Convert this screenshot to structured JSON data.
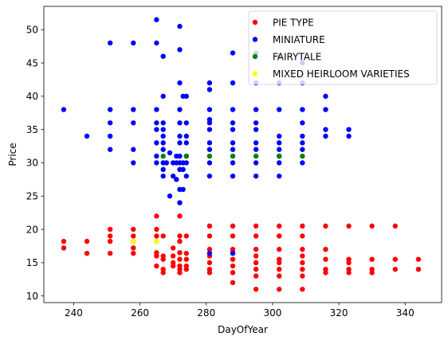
{
  "chart_data": {
    "type": "scatter",
    "xlabel": "DayOfYear",
    "ylabel": "Price",
    "xlim": [
      231,
      351
    ],
    "ylim": [
      9,
      53.5
    ],
    "xticks": [
      240,
      260,
      280,
      300,
      320,
      340
    ],
    "yticks": [
      10,
      15,
      20,
      25,
      30,
      35,
      40,
      45,
      50
    ],
    "grid": false,
    "legend_position": "top-right",
    "series": [
      {
        "name": "PIE TYPE",
        "color": "#ff0000",
        "points": [
          [
            237,
            18.2
          ],
          [
            237,
            17.2
          ],
          [
            244,
            18.2
          ],
          [
            244,
            16.4
          ],
          [
            251,
            20
          ],
          [
            251,
            19
          ],
          [
            251,
            18.2
          ],
          [
            251,
            16.4
          ],
          [
            258,
            20
          ],
          [
            258,
            19
          ],
          [
            258,
            18.2
          ],
          [
            258,
            17.2
          ],
          [
            258,
            16.4
          ],
          [
            265,
            22
          ],
          [
            265,
            20
          ],
          [
            265,
            19
          ],
          [
            265,
            18.2
          ],
          [
            265,
            16.5
          ],
          [
            265,
            16
          ],
          [
            265,
            14.5
          ],
          [
            267,
            19
          ],
          [
            267,
            16
          ],
          [
            267,
            15.5
          ],
          [
            267,
            14
          ],
          [
            267,
            13.5
          ],
          [
            270,
            17.2
          ],
          [
            270,
            16
          ],
          [
            270,
            15
          ],
          [
            270,
            14.5
          ],
          [
            272,
            24
          ],
          [
            272,
            22
          ],
          [
            272,
            19
          ],
          [
            272,
            18.2
          ],
          [
            272,
            16.5
          ],
          [
            272,
            15.5
          ],
          [
            272,
            14.5
          ],
          [
            272,
            14
          ],
          [
            272,
            13.5
          ],
          [
            274,
            19
          ],
          [
            274,
            16.4
          ],
          [
            274,
            15.5
          ],
          [
            274,
            14.5
          ],
          [
            274,
            14
          ],
          [
            281,
            20.5
          ],
          [
            281,
            19
          ],
          [
            281,
            17
          ],
          [
            281,
            16
          ],
          [
            281,
            15
          ],
          [
            281,
            14
          ],
          [
            281,
            13.5
          ],
          [
            288,
            20.5
          ],
          [
            288,
            19
          ],
          [
            288,
            17
          ],
          [
            288,
            16.5
          ],
          [
            288,
            15.5
          ],
          [
            288,
            14.5
          ],
          [
            288,
            13.5
          ],
          [
            288,
            12
          ],
          [
            295,
            20.5
          ],
          [
            295,
            19
          ],
          [
            295,
            17
          ],
          [
            295,
            16
          ],
          [
            295,
            15
          ],
          [
            295,
            14
          ],
          [
            295,
            13
          ],
          [
            295,
            11
          ],
          [
            302,
            20.5
          ],
          [
            302,
            19
          ],
          [
            302,
            17
          ],
          [
            302,
            15.5
          ],
          [
            302,
            15
          ],
          [
            302,
            14
          ],
          [
            302,
            13
          ],
          [
            302,
            11
          ],
          [
            309,
            20.5
          ],
          [
            309,
            19
          ],
          [
            309,
            17
          ],
          [
            309,
            16
          ],
          [
            309,
            15
          ],
          [
            309,
            14
          ],
          [
            309,
            13
          ],
          [
            309,
            11
          ],
          [
            316,
            20.5
          ],
          [
            316,
            17
          ],
          [
            316,
            15.5
          ],
          [
            316,
            14
          ],
          [
            316,
            13.5
          ],
          [
            323,
            20.5
          ],
          [
            323,
            15.5
          ],
          [
            323,
            15
          ],
          [
            323,
            14
          ],
          [
            323,
            13.5
          ],
          [
            330,
            20.5
          ],
          [
            330,
            15.5
          ],
          [
            330,
            14
          ],
          [
            330,
            13.5
          ],
          [
            337,
            20.5
          ],
          [
            337,
            15.5
          ],
          [
            337,
            14
          ],
          [
            344,
            15.5
          ],
          [
            344,
            14
          ]
        ]
      },
      {
        "name": "MINIATURE",
        "color": "#0000ff",
        "points": [
          [
            237,
            38
          ],
          [
            244,
            34
          ],
          [
            251,
            48
          ],
          [
            251,
            38
          ],
          [
            251,
            36
          ],
          [
            251,
            34
          ],
          [
            251,
            32
          ],
          [
            258,
            48
          ],
          [
            258,
            38
          ],
          [
            258,
            36
          ],
          [
            258,
            32
          ],
          [
            258,
            30
          ],
          [
            265,
            51.5
          ],
          [
            265,
            48
          ],
          [
            265,
            38
          ],
          [
            265,
            36
          ],
          [
            265,
            35
          ],
          [
            265,
            33
          ],
          [
            265,
            31
          ],
          [
            265,
            30
          ],
          [
            267,
            46
          ],
          [
            267,
            40
          ],
          [
            267,
            36
          ],
          [
            267,
            35
          ],
          [
            267,
            34
          ],
          [
            267,
            33
          ],
          [
            267,
            32
          ],
          [
            267,
            30
          ],
          [
            267,
            29
          ],
          [
            267,
            28
          ],
          [
            268,
            30
          ],
          [
            269,
            31.5
          ],
          [
            269,
            25
          ],
          [
            270,
            30
          ],
          [
            270,
            28
          ],
          [
            271,
            31
          ],
          [
            271,
            30
          ],
          [
            271,
            27.5
          ],
          [
            272,
            50.5
          ],
          [
            272,
            47
          ],
          [
            272,
            42
          ],
          [
            272,
            38
          ],
          [
            272,
            36
          ],
          [
            272,
            34
          ],
          [
            272,
            33
          ],
          [
            272,
            31
          ],
          [
            272,
            30
          ],
          [
            272,
            29
          ],
          [
            272,
            26
          ],
          [
            272,
            24
          ],
          [
            273,
            40
          ],
          [
            273,
            30
          ],
          [
            273,
            29
          ],
          [
            273,
            26
          ],
          [
            274,
            40
          ],
          [
            274,
            36
          ],
          [
            274,
            34
          ],
          [
            274,
            33
          ],
          [
            274,
            31
          ],
          [
            274,
            30
          ],
          [
            274,
            28
          ],
          [
            281,
            42
          ],
          [
            281,
            41
          ],
          [
            281,
            38
          ],
          [
            281,
            36.5
          ],
          [
            281,
            36
          ],
          [
            281,
            35
          ],
          [
            281,
            33
          ],
          [
            281,
            32
          ],
          [
            281,
            30
          ],
          [
            281,
            28
          ],
          [
            281,
            16.4
          ],
          [
            288,
            46.5
          ],
          [
            288,
            42
          ],
          [
            288,
            38
          ],
          [
            288,
            36
          ],
          [
            288,
            35
          ],
          [
            288,
            33
          ],
          [
            288,
            32
          ],
          [
            288,
            30
          ],
          [
            288,
            28
          ],
          [
            288,
            16.4
          ],
          [
            295,
            46.5
          ],
          [
            295,
            42
          ],
          [
            295,
            38
          ],
          [
            295,
            36
          ],
          [
            295,
            35
          ],
          [
            295,
            33
          ],
          [
            295,
            32
          ],
          [
            295,
            30
          ],
          [
            295,
            28
          ],
          [
            302,
            46
          ],
          [
            302,
            42
          ],
          [
            302,
            38
          ],
          [
            302,
            34
          ],
          [
            302,
            33
          ],
          [
            302,
            32
          ],
          [
            302,
            31
          ],
          [
            302,
            30
          ],
          [
            302,
            28
          ],
          [
            309,
            45
          ],
          [
            309,
            42
          ],
          [
            309,
            38
          ],
          [
            309,
            36
          ],
          [
            309,
            34
          ],
          [
            309,
            33
          ],
          [
            309,
            32
          ],
          [
            309,
            30
          ],
          [
            316,
            40
          ],
          [
            316,
            38
          ],
          [
            316,
            35
          ],
          [
            316,
            34
          ],
          [
            323,
            35
          ],
          [
            323,
            34
          ]
        ]
      },
      {
        "name": "FAIRYTALE",
        "color": "#008000",
        "points": [
          [
            267,
            31
          ],
          [
            274,
            31
          ],
          [
            281,
            31
          ],
          [
            288,
            31
          ],
          [
            295,
            31
          ],
          [
            302,
            31
          ],
          [
            309,
            31
          ]
        ]
      },
      {
        "name": "MIXED HEIRLOOM VARIETIES",
        "color": "#ffff00",
        "points": [
          [
            258,
            18.2
          ],
          [
            265,
            18.2
          ]
        ]
      }
    ]
  }
}
